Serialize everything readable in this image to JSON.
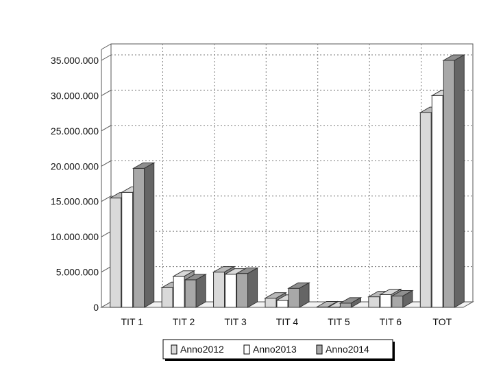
{
  "chart_data": {
    "type": "bar",
    "style": "3d-clustered",
    "title": "",
    "xlabel": "",
    "ylabel": "",
    "categories": [
      "TIT 1",
      "TIT 2",
      "TIT 3",
      "TIT 4",
      "TIT 5",
      "TIT 6",
      "TOT"
    ],
    "series": [
      {
        "name": "Anno2012",
        "color": "#d9d9d9",
        "values": [
          15500000,
          2800000,
          5000000,
          1300000,
          50000,
          1500000,
          27600000
        ]
      },
      {
        "name": "Anno2013",
        "color": "#ffffff",
        "values": [
          16300000,
          4400000,
          4700000,
          1000000,
          40000,
          1800000,
          30000000
        ]
      },
      {
        "name": "Anno2014",
        "color": "#a8a8a8",
        "values": [
          19700000,
          3900000,
          4800000,
          2700000,
          600000,
          1600000,
          35000000
        ]
      }
    ],
    "yticks": [
      "0",
      "5.000.000",
      "10.000.000",
      "15.000.000",
      "20.000.000",
      "25.000.000",
      "30.000.000",
      "35.000.000"
    ],
    "ylim": [
      0,
      35000000
    ],
    "grid": true,
    "legend": "bottom-center"
  }
}
